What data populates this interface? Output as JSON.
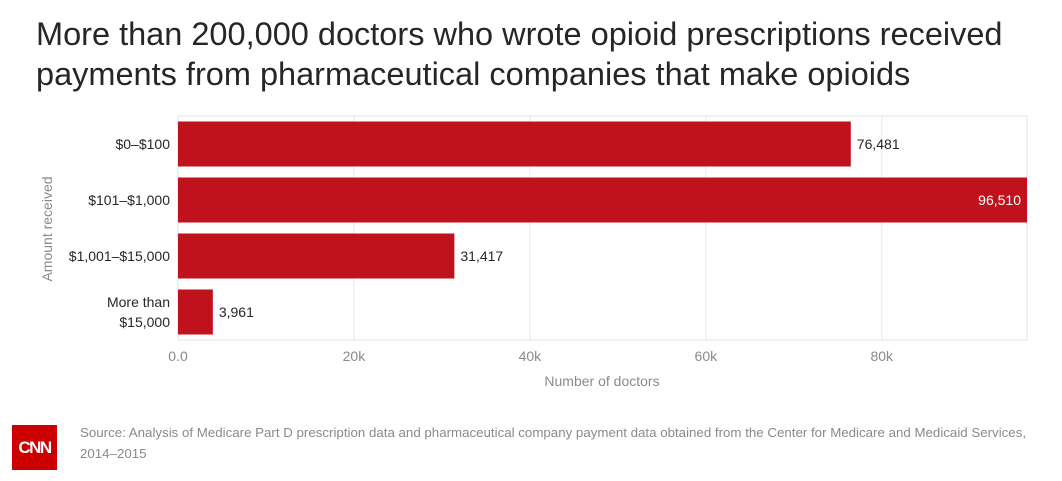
{
  "title": "More than 200,000 doctors who wrote opioid prescriptions received payments from pharmaceutical companies that make opioids",
  "source": "Source: Analysis of Medicare Part D prescription data and pharmaceutical company payment data obtained from the Center for Medicare and Medicaid Services, 2014–2015",
  "logo_text": "CNN",
  "colors": {
    "bar": "#c0121c",
    "grid": "#e6e6e6",
    "frame": "#e3e3e3",
    "axis_text": "#8a8a8a",
    "label_text": "#262626",
    "logo": "#cc0000"
  },
  "chart_data": {
    "type": "bar",
    "orientation": "horizontal",
    "categories": [
      [
        "$0–$100"
      ],
      [
        "$101–$1,000"
      ],
      [
        "$1,001–$15,000"
      ],
      [
        "More than",
        "$15,000"
      ]
    ],
    "values": [
      76481,
      96510,
      31417,
      3961
    ],
    "value_labels": [
      "76,481",
      "96,510",
      "31,417",
      "3,961"
    ],
    "xlabel": "Number of doctors",
    "ylabel": "Amount received",
    "xlim": [
      0,
      96510
    ],
    "x_ticks": [
      0,
      20000,
      40000,
      60000,
      80000
    ],
    "x_tick_labels": [
      "0.0",
      "20k",
      "40k",
      "60k",
      "80k"
    ],
    "grid": true,
    "legend": "none"
  }
}
